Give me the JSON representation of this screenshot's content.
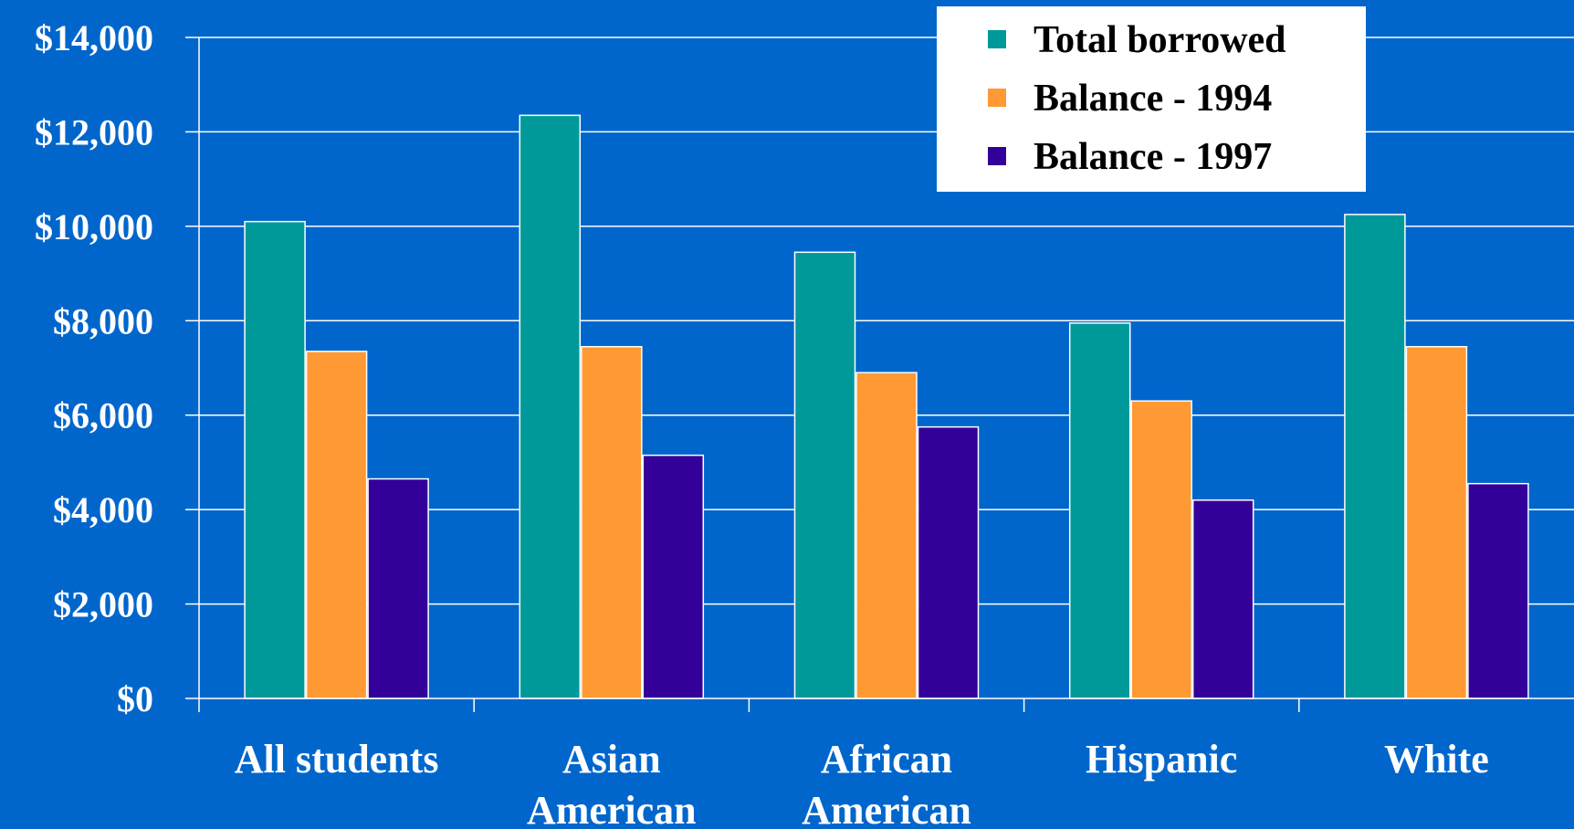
{
  "chart_data": {
    "type": "bar",
    "title": "",
    "xlabel": "",
    "ylabel": "",
    "categories": [
      [
        "All students"
      ],
      [
        "Asian",
        "American"
      ],
      [
        "African",
        "American"
      ],
      [
        "Hispanic"
      ],
      [
        "White"
      ]
    ],
    "series": [
      {
        "name": "Total borrowed",
        "color": "#009999",
        "values": [
          10100,
          12350,
          9450,
          7950,
          10250
        ]
      },
      {
        "name": "Balance - 1994",
        "color": "#ff9933",
        "values": [
          7350,
          7450,
          6900,
          6300,
          7450
        ]
      },
      {
        "name": "Balance - 1997",
        "color": "#330099",
        "values": [
          4650,
          5150,
          5750,
          4200,
          4550
        ]
      }
    ],
    "ylim": [
      0,
      14000
    ],
    "yticks": [
      0,
      2000,
      4000,
      6000,
      8000,
      10000,
      12000,
      14000
    ],
    "ytick_labels": [
      "$0",
      "$2,000",
      "$4,000",
      "$6,000",
      "$8,000",
      "$10,000",
      "$12,000",
      "$14,000"
    ],
    "grid": true,
    "legend_position": "top-right",
    "colors": {
      "background": "#0066cc",
      "axis": "#ffffff",
      "legend_background": "#ffffff",
      "legend_text": "#000000"
    }
  }
}
